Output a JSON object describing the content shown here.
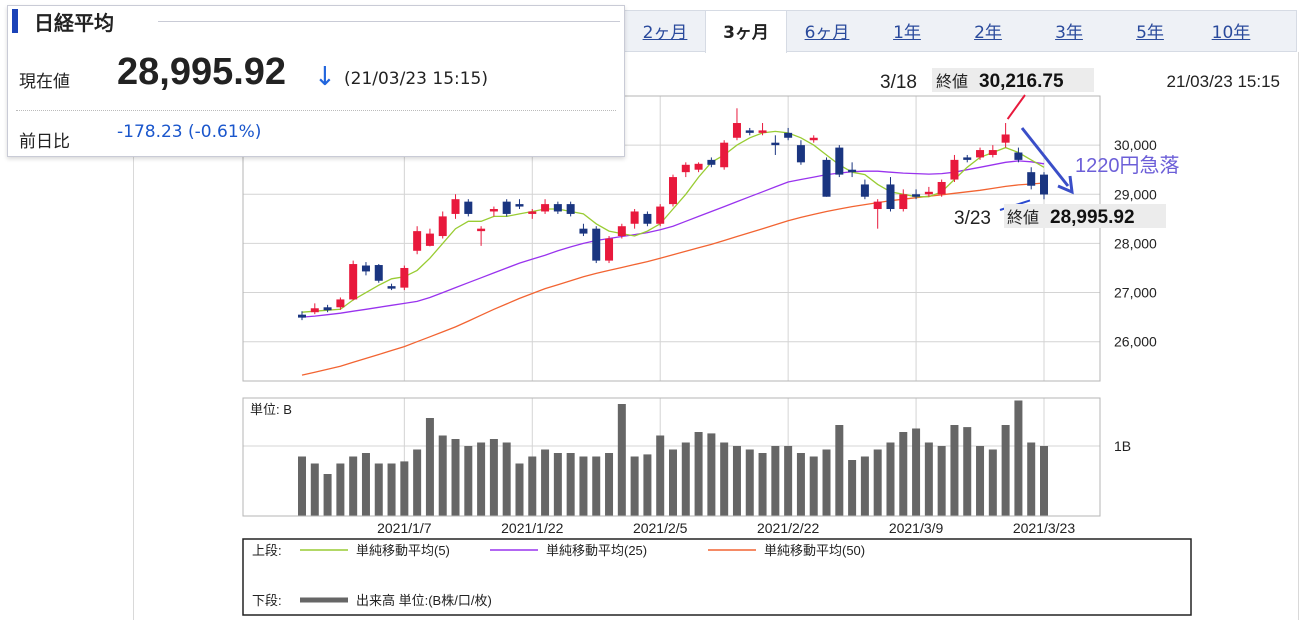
{
  "header": {
    "title": "日経平均",
    "current_label": "現在値",
    "current_value": "28,995.92",
    "direction_icon": "down-arrow-icon",
    "timestamp": "(21/03/23 15:15)",
    "change_label": "前日比",
    "change_value": "-178.23 (-0.61%)"
  },
  "tabs": [
    {
      "label": "2ヶ月",
      "active": false
    },
    {
      "label": "3ヶ月",
      "active": true
    },
    {
      "label": "6ヶ月",
      "active": false
    },
    {
      "label": "1年",
      "active": false
    },
    {
      "label": "2年",
      "active": false
    },
    {
      "label": "3年",
      "active": false
    },
    {
      "label": "5年",
      "active": false
    },
    {
      "label": "10年",
      "active": false
    }
  ],
  "chart_timestamp": "21/03/23 15:15",
  "annotations": {
    "peak_date": "3/18",
    "peak_label": "終値",
    "peak_value": "30,216.75",
    "last_date": "3/23",
    "last_label": "終値",
    "last_value": "28,995.92",
    "drop_text": "1220円急落"
  },
  "legend": {
    "upper_label": "上段:",
    "ma5": "単純移動平均(5)",
    "ma25": "単純移動平均(25)",
    "ma50": "単純移動平均(50)",
    "lower_label": "下段:",
    "volume": "出来高 単位:(B株/口/枚)"
  },
  "chart_data": {
    "type": "candlestick",
    "colors": {
      "up": "#e8193c",
      "down": "#1a3580",
      "ma5": "#99cc33",
      "ma25": "#9933ee",
      "ma50": "#f26432",
      "volume": "#666666",
      "grid": "#d4d4d4"
    },
    "price_ylim": [
      25200,
      31000
    ],
    "price_ticks": [
      26000,
      27000,
      28000,
      29000,
      30000
    ],
    "price_tick_labels": [
      "26,000",
      "27,000",
      "28,000",
      "29,000",
      "30,000"
    ],
    "volume_unit_label": "単位: B",
    "volume_ylim": [
      0,
      1.6
    ],
    "volume_ticks": [
      1
    ],
    "volume_tick_labels": [
      "1B"
    ],
    "x_tick_labels": [
      {
        "index": 8,
        "label": "2021/1/7"
      },
      {
        "index": 18,
        "label": "2021/1/22"
      },
      {
        "index": 28,
        "label": "2021/2/5"
      },
      {
        "index": 38,
        "label": "2021/2/22"
      },
      {
        "index": 48,
        "label": "2021/3/9"
      },
      {
        "index": 58,
        "label": "2021/3/23"
      }
    ],
    "candles": [
      {
        "o": 26550,
        "h": 26620,
        "l": 26440,
        "c": 26490
      },
      {
        "o": 26600,
        "h": 26780,
        "l": 26560,
        "c": 26680
      },
      {
        "o": 26700,
        "h": 26750,
        "l": 26600,
        "c": 26640
      },
      {
        "o": 26700,
        "h": 26900,
        "l": 26650,
        "c": 26860
      },
      {
        "o": 26860,
        "h": 27650,
        "l": 26840,
        "c": 27580
      },
      {
        "o": 27550,
        "h": 27620,
        "l": 27350,
        "c": 27430
      },
      {
        "o": 27560,
        "h": 27580,
        "l": 27200,
        "c": 27240
      },
      {
        "o": 27130,
        "h": 27180,
        "l": 27050,
        "c": 27080
      },
      {
        "o": 27100,
        "h": 27550,
        "l": 27050,
        "c": 27500
      },
      {
        "o": 27850,
        "h": 28350,
        "l": 27780,
        "c": 28250
      },
      {
        "o": 27950,
        "h": 28300,
        "l": 27940,
        "c": 28200
      },
      {
        "o": 28150,
        "h": 28650,
        "l": 28100,
        "c": 28550
      },
      {
        "o": 28600,
        "h": 29000,
        "l": 28500,
        "c": 28900
      },
      {
        "o": 28850,
        "h": 28900,
        "l": 28550,
        "c": 28600
      },
      {
        "o": 28250,
        "h": 28350,
        "l": 27950,
        "c": 28300
      },
      {
        "o": 28650,
        "h": 28750,
        "l": 28550,
        "c": 28700
      },
      {
        "o": 28850,
        "h": 28900,
        "l": 28550,
        "c": 28600
      },
      {
        "o": 28800,
        "h": 28900,
        "l": 28700,
        "c": 28750
      },
      {
        "o": 28600,
        "h": 28700,
        "l": 28500,
        "c": 28650
      },
      {
        "o": 28650,
        "h": 28900,
        "l": 28600,
        "c": 28800
      },
      {
        "o": 28800,
        "h": 28850,
        "l": 28600,
        "c": 28650
      },
      {
        "o": 28800,
        "h": 28850,
        "l": 28550,
        "c": 28600
      },
      {
        "o": 28300,
        "h": 28400,
        "l": 28150,
        "c": 28200
      },
      {
        "o": 28300,
        "h": 28350,
        "l": 27600,
        "c": 27650
      },
      {
        "o": 27650,
        "h": 28150,
        "l": 27600,
        "c": 28100
      },
      {
        "o": 28150,
        "h": 28400,
        "l": 28100,
        "c": 28350
      },
      {
        "o": 28400,
        "h": 28700,
        "l": 28300,
        "c": 28650
      },
      {
        "o": 28600,
        "h": 28650,
        "l": 28350,
        "c": 28400
      },
      {
        "o": 28400,
        "h": 28800,
        "l": 28350,
        "c": 28750
      },
      {
        "o": 28800,
        "h": 29400,
        "l": 28750,
        "c": 29350
      },
      {
        "o": 29450,
        "h": 29650,
        "l": 29350,
        "c": 29600
      },
      {
        "o": 29500,
        "h": 29650,
        "l": 29450,
        "c": 29620
      },
      {
        "o": 29700,
        "h": 29750,
        "l": 29550,
        "c": 29600
      },
      {
        "o": 29550,
        "h": 30100,
        "l": 29500,
        "c": 30050
      },
      {
        "o": 30150,
        "h": 30750,
        "l": 30100,
        "c": 30450
      },
      {
        "o": 30300,
        "h": 30350,
        "l": 30200,
        "c": 30250
      },
      {
        "o": 30250,
        "h": 30450,
        "l": 30200,
        "c": 30300
      },
      {
        "o": 30050,
        "h": 30200,
        "l": 29800,
        "c": 30000
      },
      {
        "o": 30250,
        "h": 30350,
        "l": 30100,
        "c": 30150
      },
      {
        "o": 30000,
        "h": 30100,
        "l": 29600,
        "c": 29650
      },
      {
        "o": 30100,
        "h": 30200,
        "l": 30050,
        "c": 30150
      },
      {
        "o": 29700,
        "h": 29750,
        "l": 28950,
        "c": 28950
      },
      {
        "o": 29950,
        "h": 30000,
        "l": 29350,
        "c": 29400
      },
      {
        "o": 29500,
        "h": 29650,
        "l": 29350,
        "c": 29450
      },
      {
        "o": 29200,
        "h": 29300,
        "l": 28900,
        "c": 28950
      },
      {
        "o": 28700,
        "h": 28900,
        "l": 28300,
        "c": 28850
      },
      {
        "o": 29200,
        "h": 29350,
        "l": 28650,
        "c": 28700
      },
      {
        "o": 28700,
        "h": 29100,
        "l": 28650,
        "c": 29000
      },
      {
        "o": 29000,
        "h": 29100,
        "l": 28900,
        "c": 28950
      },
      {
        "o": 29000,
        "h": 29150,
        "l": 28950,
        "c": 29050
      },
      {
        "o": 29000,
        "h": 29300,
        "l": 28950,
        "c": 29250
      },
      {
        "o": 29300,
        "h": 29800,
        "l": 29250,
        "c": 29700
      },
      {
        "o": 29750,
        "h": 29800,
        "l": 29650,
        "c": 29700
      },
      {
        "o": 29750,
        "h": 29950,
        "l": 29700,
        "c": 29900
      },
      {
        "o": 29800,
        "h": 30000,
        "l": 29750,
        "c": 29900
      },
      {
        "o": 30050,
        "h": 30450,
        "l": 29950,
        "c": 30217
      },
      {
        "o": 29850,
        "h": 29950,
        "l": 29650,
        "c": 29700
      },
      {
        "o": 29450,
        "h": 29550,
        "l": 29100,
        "c": 29174
      },
      {
        "o": 29400,
        "h": 29450,
        "l": 28900,
        "c": 28996
      }
    ],
    "ma5": [
      26600,
      26620,
      26640,
      26660,
      26850,
      27000,
      27150,
      27280,
      27320,
      27450,
      27700,
      28000,
      28300,
      28450,
      28450,
      28550,
      28550,
      28600,
      28650,
      28700,
      28700,
      28650,
      28600,
      28400,
      28250,
      28200,
      28150,
      28250,
      28400,
      28700,
      29000,
      29350,
      29650,
      29800,
      30000,
      30150,
      30250,
      30280,
      30250,
      30150,
      30000,
      29800,
      29600,
      29450,
      29400,
      29200,
      29050,
      29000,
      28950,
      28950,
      29050,
      29300,
      29550,
      29750,
      29850,
      29950,
      29850,
      29700,
      29550
    ],
    "ma25": [
      26500,
      26520,
      26550,
      26580,
      26620,
      26660,
      26700,
      26740,
      26780,
      26820,
      26900,
      27000,
      27100,
      27200,
      27300,
      27400,
      27500,
      27600,
      27680,
      27760,
      27850,
      27930,
      28000,
      28060,
      28100,
      28140,
      28180,
      28220,
      28280,
      28350,
      28450,
      28550,
      28650,
      28750,
      28850,
      28950,
      29050,
      29150,
      29250,
      29300,
      29350,
      29400,
      29430,
      29460,
      29470,
      29470,
      29450,
      29430,
      29420,
      29410,
      29420,
      29450,
      29500,
      29550,
      29600,
      29650,
      29680,
      29660,
      29620
    ],
    "ma50": [
      25320,
      25380,
      25440,
      25500,
      25580,
      25660,
      25740,
      25820,
      25900,
      26000,
      26100,
      26200,
      26300,
      26420,
      26540,
      26660,
      26770,
      26880,
      26980,
      27080,
      27160,
      27240,
      27320,
      27390,
      27450,
      27510,
      27570,
      27630,
      27700,
      27770,
      27840,
      27910,
      27980,
      28060,
      28140,
      28220,
      28300,
      28380,
      28460,
      28530,
      28590,
      28650,
      28700,
      28750,
      28790,
      28830,
      28870,
      28900,
      28930,
      28960,
      28990,
      29020,
      29050,
      29080,
      29120,
      29160,
      29190,
      29210,
      29230
    ],
    "volume": [
      0.85,
      0.75,
      0.6,
      0.75,
      0.85,
      0.9,
      0.75,
      0.75,
      0.78,
      0.95,
      1.4,
      1.15,
      1.1,
      1.0,
      1.05,
      1.1,
      1.05,
      0.75,
      0.85,
      0.95,
      0.9,
      0.9,
      0.85,
      0.85,
      0.9,
      1.6,
      0.85,
      0.88,
      1.15,
      0.95,
      1.05,
      1.2,
      1.18,
      1.05,
      1.0,
      0.95,
      0.9,
      1.0,
      1.0,
      0.9,
      0.85,
      0.95,
      1.3,
      0.8,
      0.85,
      0.95,
      1.05,
      1.2,
      1.25,
      1.05,
      1.0,
      1.3,
      1.27,
      1.0,
      0.95,
      1.3,
      1.65,
      1.05,
      1.0
    ],
    "legend_series": [
      "単純移動平均(5)",
      "単純移動平均(25)",
      "単純移動平均(50)",
      "出来高"
    ]
  }
}
